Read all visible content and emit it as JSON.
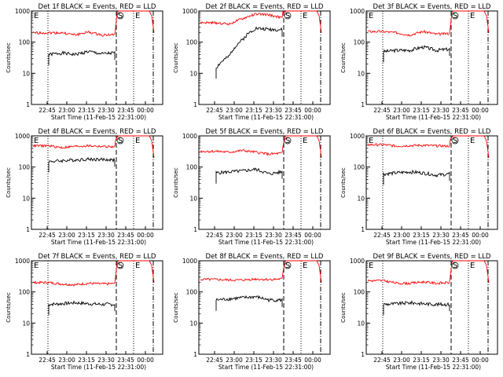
{
  "chart_data": [
    {
      "type": "line",
      "title": "Det 1f BLACK = Events, RED = LLD",
      "xlabel": "Start Time (11-Feb-15 22:31:00)",
      "ylabel": "Counts/sec",
      "ylim": [
        1,
        1000
      ],
      "yscale": "log",
      "xticks": [
        "22:45",
        "23:00",
        "23:15",
        "23:30",
        "23:45",
        "00:00"
      ],
      "yticks": [
        "1",
        "10",
        "100",
        "1000"
      ],
      "markers": [
        {
          "label": "E"
        },
        {
          "label": "S"
        },
        {
          "label": "E"
        }
      ],
      "series": [
        {
          "name": "Events",
          "color": "#000000",
          "level": "~40"
        },
        {
          "name": "LLD",
          "color": "#ff0000",
          "level": "~200"
        }
      ]
    },
    {
      "type": "line",
      "title": "Det 2f BLACK = Events, RED = LLD",
      "xlabel": "Start Time (11-Feb-15 22:31:00)",
      "ylabel": "Counts/sec",
      "ylim": [
        1,
        1000
      ],
      "yscale": "log",
      "xticks": [
        "22:45",
        "23:00",
        "23:15",
        "23:30",
        "23:45",
        "00:00"
      ],
      "yticks": [
        "1",
        "10",
        "100",
        "1000"
      ],
      "markers": [
        {
          "label": "S"
        },
        {
          "label": "E"
        }
      ],
      "series": [
        {
          "name": "Events",
          "color": "#000000",
          "level": "~20-300"
        },
        {
          "name": "LLD",
          "color": "#ff0000",
          "level": "~300-800"
        }
      ]
    },
    {
      "type": "line",
      "title": "Det 3f BLACK = Events, RED = LLD",
      "xlabel": "Start Time (11-Feb-15 22:31:00)",
      "ylabel": "Counts/sec",
      "ylim": [
        1,
        1000
      ],
      "yscale": "log",
      "xticks": [
        "22:45",
        "23:00",
        "23:15",
        "23:30",
        "23:45",
        "00:00"
      ],
      "yticks": [
        "1",
        "10",
        "100",
        "1000"
      ],
      "markers": [
        {
          "label": "E"
        },
        {
          "label": "S"
        },
        {
          "label": "E"
        }
      ],
      "series": [
        {
          "name": "Events",
          "color": "#000000",
          "level": "~50"
        },
        {
          "name": "LLD",
          "color": "#ff0000",
          "level": "~200"
        }
      ]
    },
    {
      "type": "line",
      "title": "Det 4f BLACK = Events, RED = LLD",
      "xlabel": "Start Time (11-Feb-15 22:31:00)",
      "ylabel": "Counts/sec",
      "ylim": [
        1,
        1000
      ],
      "yscale": "log",
      "xticks": [
        "22:45",
        "23:00",
        "23:15",
        "23:30",
        "23:45",
        "00:00"
      ],
      "yticks": [
        "1",
        "10",
        "100",
        "1000"
      ],
      "markers": [
        {
          "label": "E"
        },
        {
          "label": "S"
        },
        {
          "label": "E"
        }
      ],
      "series": [
        {
          "name": "Events",
          "color": "#000000",
          "level": "~170"
        },
        {
          "name": "LLD",
          "color": "#ff0000",
          "level": "~400"
        }
      ]
    },
    {
      "type": "line",
      "title": "Det 5f BLACK = Events, RED = LLD",
      "xlabel": "Start Time (11-Feb-15 22:31:00)",
      "ylabel": "Counts/sec",
      "ylim": [
        1,
        1000
      ],
      "yscale": "log",
      "xticks": [
        "22:45",
        "23:00",
        "23:15",
        "23:30",
        "23:45",
        "00:00"
      ],
      "yticks": [
        "1",
        "10",
        "100",
        "1000"
      ],
      "markers": [
        {
          "label": "S"
        },
        {
          "label": "E"
        }
      ],
      "series": [
        {
          "name": "Events",
          "color": "#000000",
          "level": "~70"
        },
        {
          "name": "LLD",
          "color": "#ff0000",
          "level": "~300"
        }
      ]
    },
    {
      "type": "line",
      "title": "Det 6f BLACK = Events, RED = LLD",
      "xlabel": "Start Time (11-Feb-15 22:31:00)",
      "ylabel": "Counts/sec",
      "ylim": [
        1,
        1000
      ],
      "yscale": "log",
      "xticks": [
        "22:45",
        "23:00",
        "23:15",
        "23:30",
        "23:45",
        "00:00"
      ],
      "yticks": [
        "1",
        "10",
        "100",
        "1000"
      ],
      "markers": [
        {
          "label": "E"
        },
        {
          "label": "S"
        },
        {
          "label": "E"
        }
      ],
      "series": [
        {
          "name": "Events",
          "color": "#000000",
          "level": "~60"
        },
        {
          "name": "LLD",
          "color": "#ff0000",
          "level": "~500"
        }
      ]
    },
    {
      "type": "line",
      "title": "Det 7f BLACK = Events, RED = LLD",
      "xlabel": "Start Time (11-Feb-15 22:31:00)",
      "ylabel": "Counts/sec",
      "ylim": [
        1,
        1000
      ],
      "yscale": "log",
      "xticks": [
        "22:45",
        "23:00",
        "23:15",
        "23:30",
        "23:45",
        "00:00"
      ],
      "yticks": [
        "1",
        "10",
        "100",
        "1000"
      ],
      "markers": [
        {
          "label": "E"
        },
        {
          "label": "S"
        },
        {
          "label": "E"
        }
      ],
      "series": [
        {
          "name": "Events",
          "color": "#000000",
          "level": "~35"
        },
        {
          "name": "LLD",
          "color": "#ff0000",
          "level": "~170"
        }
      ]
    },
    {
      "type": "line",
      "title": "Det 8f BLACK = Events, RED = LLD",
      "xlabel": "Start Time (11-Feb-15 22:31:00)",
      "ylabel": "Counts/sec",
      "ylim": [
        1,
        1000
      ],
      "yscale": "log",
      "xticks": [
        "22:45",
        "23:00",
        "23:15",
        "23:30",
        "23:45",
        "00:00"
      ],
      "yticks": [
        "1",
        "10",
        "100",
        "1000"
      ],
      "markers": [
        {
          "label": "S"
        },
        {
          "label": "E"
        }
      ],
      "series": [
        {
          "name": "Events",
          "color": "#000000",
          "level": "~60"
        },
        {
          "name": "LLD",
          "color": "#ff0000",
          "level": "~250"
        }
      ]
    },
    {
      "type": "line",
      "title": "Det 9f BLACK = Events, RED = LLD",
      "xlabel": "Start Time (11-Feb-15 22:31:00)",
      "ylabel": "Counts/sec",
      "ylim": [
        1,
        1000
      ],
      "yscale": "log",
      "xticks": [
        "22:45",
        "23:00",
        "23:15",
        "23:30",
        "23:45",
        "00:00"
      ],
      "yticks": [
        "1",
        "10",
        "100",
        "1000"
      ],
      "markers": [
        {
          "label": "E"
        },
        {
          "label": "S"
        },
        {
          "label": "E"
        }
      ],
      "series": [
        {
          "name": "Events",
          "color": "#000000",
          "level": "~40"
        },
        {
          "name": "LLD",
          "color": "#ff0000",
          "level": "~200"
        }
      ]
    }
  ]
}
